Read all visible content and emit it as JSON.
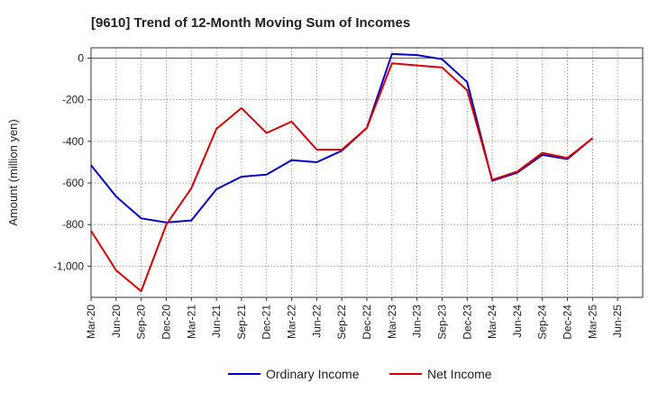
{
  "chart_data": {
    "type": "line",
    "title": "[9610]  Trend of 12-Month Moving Sum of Incomes",
    "xlabel": "",
    "ylabel": "Amount (million yen)",
    "ylim": [
      -1150,
      50
    ],
    "yticks": [
      0,
      -200,
      -400,
      -600,
      -800,
      -1000
    ],
    "ytick_labels": [
      "0",
      "-200",
      "-400",
      "-600",
      "-800",
      "-1,000"
    ],
    "categories": [
      "Mar-20",
      "Jun-20",
      "Sep-20",
      "Dec-20",
      "Mar-21",
      "Jun-21",
      "Sep-21",
      "Dec-21",
      "Mar-22",
      "Jun-22",
      "Sep-22",
      "Dec-22",
      "Mar-23",
      "Jun-23",
      "Sep-23",
      "Dec-23",
      "Mar-24",
      "Jun-24",
      "Sep-24",
      "Dec-24",
      "Mar-25",
      "Jun-25"
    ],
    "grid": true,
    "legend_position": "bottom-center",
    "series": [
      {
        "name": "Ordinary Income",
        "color": "#0000cc",
        "values": [
          -515,
          -665,
          -770,
          -790,
          -780,
          -630,
          -570,
          -560,
          -490,
          -500,
          -445,
          -335,
          20,
          15,
          -5,
          -115,
          -590,
          -550,
          -465,
          -485,
          -385,
          null
        ]
      },
      {
        "name": "Net Income",
        "color": "#dd0000",
        "values": [
          -830,
          -1020,
          -1120,
          -800,
          -625,
          -340,
          -240,
          -360,
          -305,
          -440,
          -440,
          -335,
          -25,
          -35,
          -45,
          -155,
          -585,
          -545,
          -455,
          -480,
          -385,
          null
        ]
      }
    ]
  }
}
